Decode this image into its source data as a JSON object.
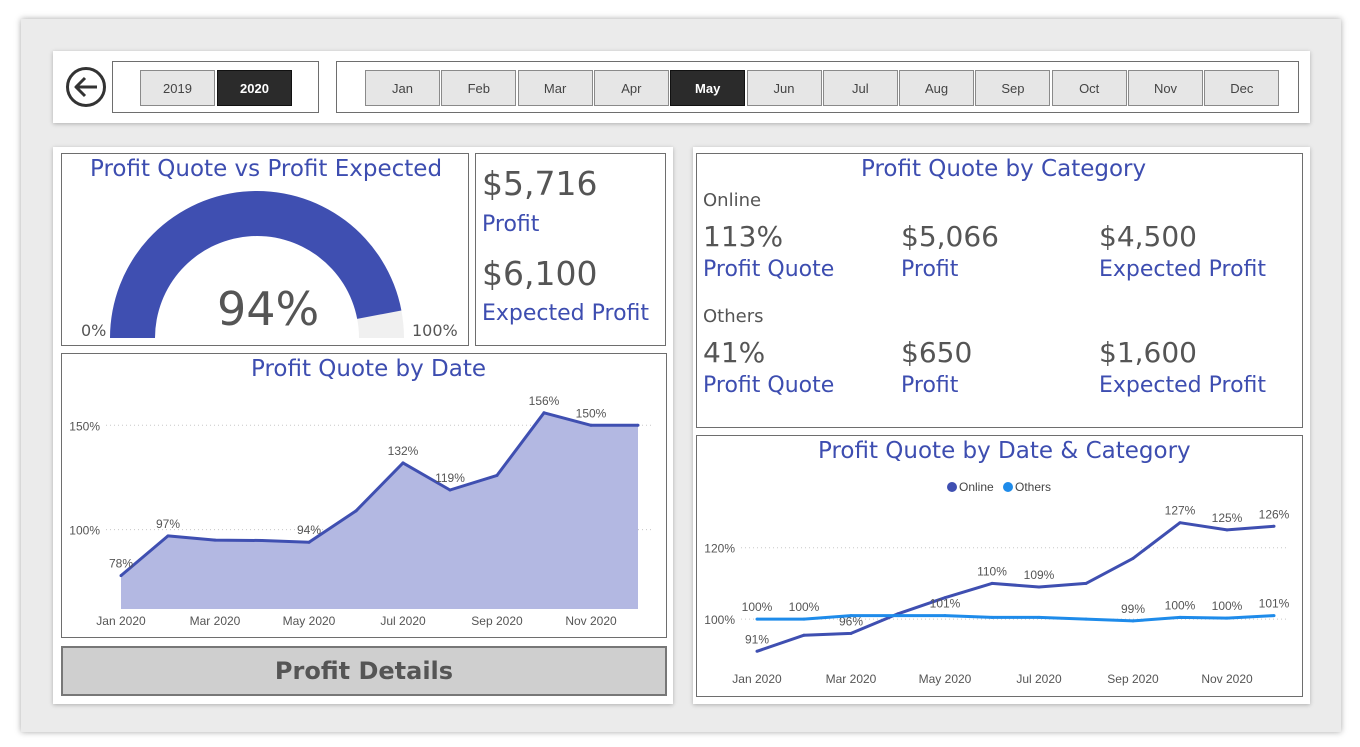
{
  "year_slicer": {
    "options": [
      "2019",
      "2020"
    ],
    "selected": "2020"
  },
  "month_slicer": {
    "options": [
      "Jan",
      "Feb",
      "Mar",
      "Apr",
      "May",
      "Jun",
      "Jul",
      "Aug",
      "Sep",
      "Oct",
      "Nov",
      "Dec"
    ],
    "selected": "May"
  },
  "gauge": {
    "title": "Profit Quote vs Profit Expected",
    "value_label": "94%",
    "value": 0.94,
    "min_label": "0%",
    "max_label": "100%",
    "fill_color": "#3f4fb1"
  },
  "kpis": {
    "profit_value": "$5,716",
    "profit_label": "Profit",
    "expected_value": "$6,100",
    "expected_label": "Expected Profit"
  },
  "category_card": {
    "title": "Profit Quote by Category",
    "groups": [
      {
        "name": "Online",
        "quote": "113%",
        "quote_label": "Profit Quote",
        "profit": "$5,066",
        "profit_label": "Profit",
        "expected": "$4,500",
        "expected_label": "Expected Profit"
      },
      {
        "name": "Others",
        "quote": "41%",
        "quote_label": "Profit Quote",
        "profit": "$650",
        "profit_label": "Profit",
        "expected": "$1,600",
        "expected_label": "Expected Profit"
      }
    ]
  },
  "profit_details_button": {
    "label": "Profit Details"
  },
  "chart_data": [
    {
      "type": "area",
      "title": "Profit Quote by Date",
      "x": [
        "Jan 2020",
        "Feb 2020",
        "Mar 2020",
        "Apr 2020",
        "May 2020",
        "Jun 2020",
        "Jul 2020",
        "Aug 2020",
        "Sep 2020",
        "Oct 2020",
        "Nov 2020",
        "Dec 2020"
      ],
      "x_tick_labels": [
        "Jan 2020",
        "Mar 2020",
        "May 2020",
        "Jul 2020",
        "Sep 2020",
        "Nov 2020"
      ],
      "values": [
        78,
        97,
        95,
        94.8,
        94,
        109,
        132,
        119,
        126,
        156,
        150,
        150
      ],
      "data_labels": [
        "78%",
        "97%",
        "",
        "",
        "94%",
        "",
        "132%",
        "119%",
        "",
        "156%",
        "150%",
        ""
      ],
      "y_ticks": [
        {
          "value": 100,
          "label": "100%"
        },
        {
          "value": 150,
          "label": "150%"
        }
      ],
      "ylim": [
        62,
        165
      ],
      "line_color": "#3f4fb1",
      "fill_color": "#b3b8e2"
    },
    {
      "type": "line",
      "title": "Profit Quote by Date & Category",
      "legend": {
        "placement": "top-center"
      },
      "x": [
        "Jan 2020",
        "Feb 2020",
        "Mar 2020",
        "Apr 2020",
        "May 2020",
        "Jun 2020",
        "Jul 2020",
        "Aug 2020",
        "Sep 2020",
        "Oct 2020",
        "Nov 2020",
        "Dec 2020"
      ],
      "x_tick_labels": [
        "Jan 2020",
        "Mar 2020",
        "May 2020",
        "Jul 2020",
        "Sep 2020",
        "Nov 2020"
      ],
      "y_ticks": [
        {
          "value": 100,
          "label": "100%"
        },
        {
          "value": 120,
          "label": "120%"
        }
      ],
      "ylim": [
        88,
        130
      ],
      "series": [
        {
          "name": "Online",
          "color": "#3f4fb1",
          "values": [
            91,
            95.5,
            96,
            101.5,
            106,
            110,
            109,
            110,
            117,
            127,
            125,
            126
          ],
          "data_labels": [
            "91%",
            "",
            "96%",
            "",
            "",
            "110%",
            "109%",
            "",
            "",
            "127%",
            "125%",
            "126%"
          ]
        },
        {
          "name": "Others",
          "color": "#1e8bea",
          "values": [
            100,
            100,
            101,
            101,
            101,
            100.5,
            100.5,
            100,
            99.5,
            100.5,
            100.3,
            101
          ],
          "data_labels": [
            "100%",
            "100%",
            "",
            "",
            "101%",
            "",
            "",
            "",
            "99%",
            "100%",
            "100%",
            "101%"
          ]
        }
      ]
    }
  ]
}
